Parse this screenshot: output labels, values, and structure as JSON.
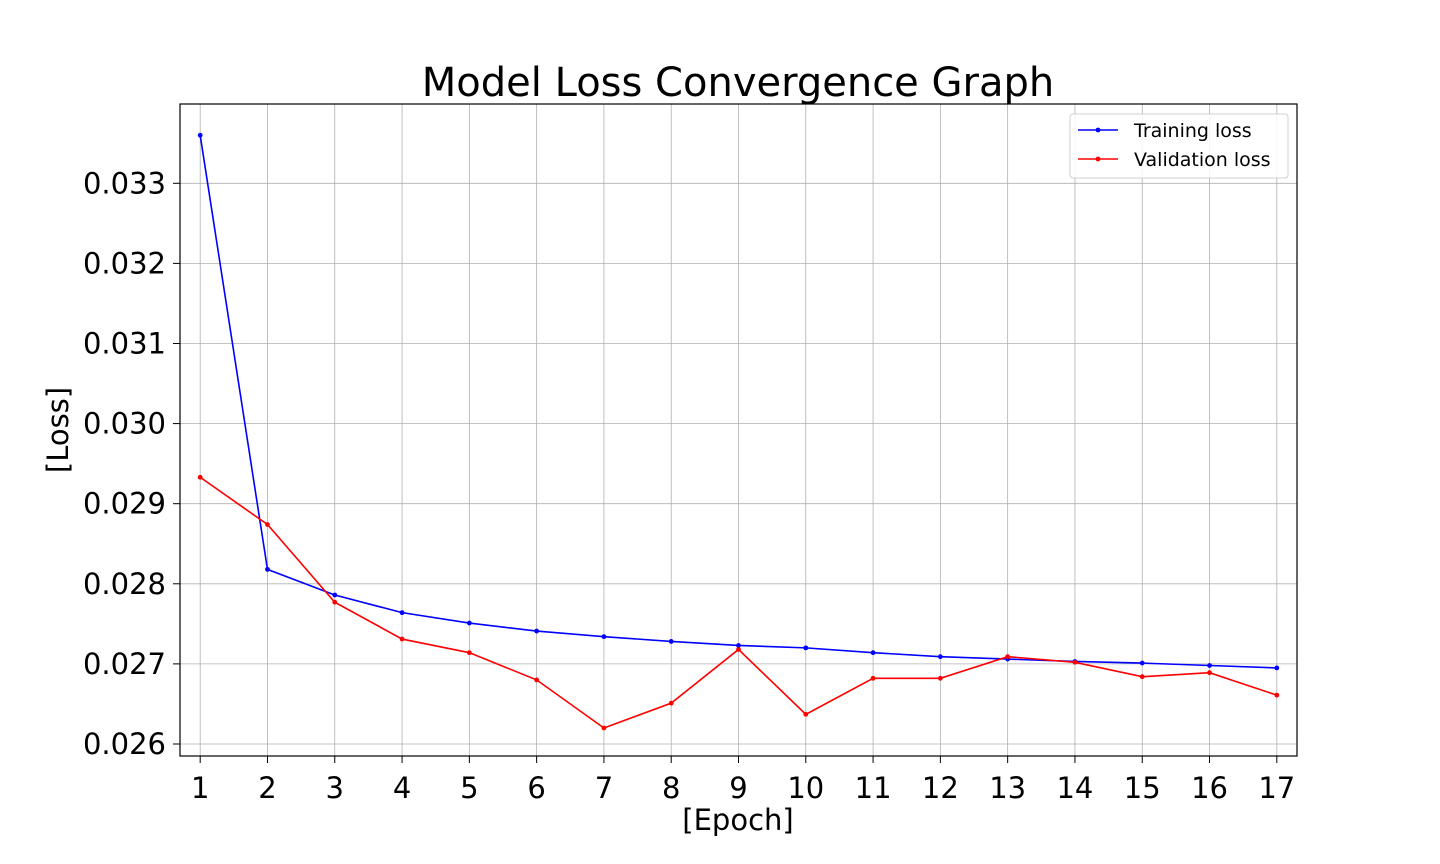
{
  "chart_data": {
    "type": "line",
    "title": "Model Loss Convergence Graph",
    "xlabel": "[Epoch]",
    "ylabel": "[Loss]",
    "x": [
      1,
      2,
      3,
      4,
      5,
      6,
      7,
      8,
      9,
      10,
      11,
      12,
      13,
      14,
      15,
      16,
      17
    ],
    "xticks": [
      "1",
      "2",
      "3",
      "4",
      "5",
      "6",
      "7",
      "8",
      "9",
      "10",
      "11",
      "12",
      "13",
      "14",
      "15",
      "16",
      "17"
    ],
    "yticks": [
      "0.026",
      "0.027",
      "0.028",
      "0.029",
      "0.030",
      "0.031",
      "0.032",
      "0.033"
    ],
    "ytick_values": [
      0.026,
      0.027,
      0.028,
      0.029,
      0.03,
      0.031,
      0.032,
      0.033
    ],
    "xlim": [
      0.7,
      17.3
    ],
    "ylim": [
      0.02585,
      0.03399
    ],
    "grid": true,
    "legend_position": "top-right",
    "series": [
      {
        "name": "Training loss",
        "color": "#0000ff",
        "values": [
          0.0336,
          0.02818,
          0.02786,
          0.02764,
          0.02751,
          0.02741,
          0.02734,
          0.02728,
          0.02723,
          0.0272,
          0.02714,
          0.02709,
          0.02706,
          0.02703,
          0.02701,
          0.02698,
          0.02695
        ]
      },
      {
        "name": "Validation loss",
        "color": "#ff0000",
        "values": [
          0.02933,
          0.02874,
          0.02777,
          0.02731,
          0.02714,
          0.0268,
          0.0262,
          0.02651,
          0.02718,
          0.02637,
          0.02682,
          0.02682,
          0.02709,
          0.02702,
          0.02684,
          0.02689,
          0.02661
        ]
      }
    ]
  }
}
